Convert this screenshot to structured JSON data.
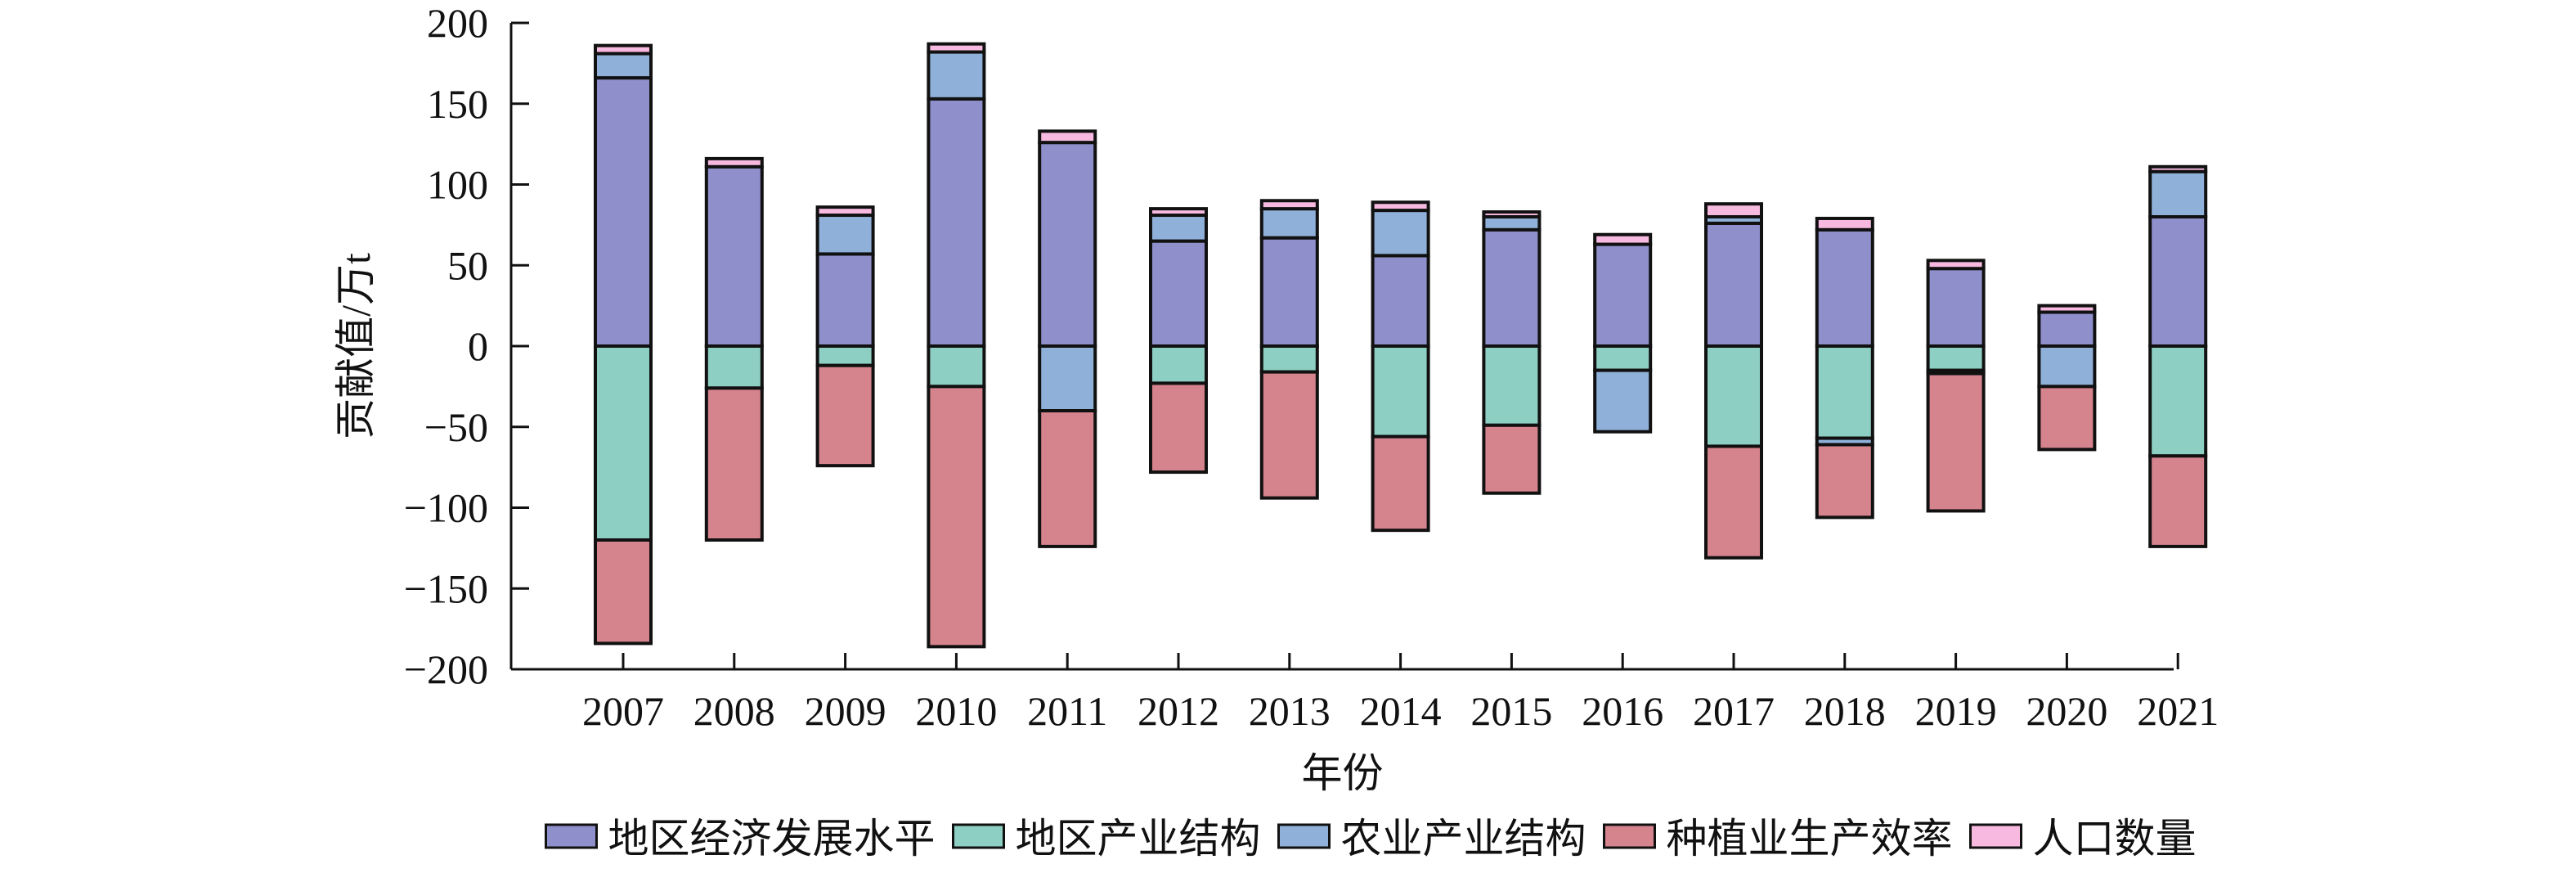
{
  "chart_data": {
    "type": "bar",
    "stacked": true,
    "title": "",
    "xlabel": "年份",
    "ylabel": "贡献值/万t",
    "ylim": [
      -200,
      200
    ],
    "yticks": [
      -200,
      -150,
      -100,
      -50,
      0,
      50,
      100,
      150,
      200
    ],
    "ytick_labels": [
      "−200",
      "−150",
      "−100",
      "−50",
      "0",
      "50",
      "100",
      "150",
      "200"
    ],
    "grid": false,
    "legend": "bottom",
    "categories": [
      "2007",
      "2008",
      "2009",
      "2010",
      "2011",
      "2012",
      "2013",
      "2014",
      "2015",
      "2016",
      "2017",
      "2018",
      "2019",
      "2020",
      "2021"
    ],
    "series": [
      {
        "name": "地区经济发展水平",
        "color": "#8f8fcc",
        "values": [
          166,
          111,
          57,
          153,
          126,
          65,
          67,
          56,
          72,
          63,
          76,
          72,
          48,
          21,
          80
        ]
      },
      {
        "name": "地区产业结构",
        "color": "#8ecfc3",
        "values": [
          -120,
          -26,
          -12,
          -25,
          0,
          -23,
          -16,
          -56,
          -49,
          -15,
          -62,
          -57,
          -15,
          0,
          -68
        ]
      },
      {
        "name": "农业产业结构",
        "color": "#8fb1d9",
        "values": [
          15,
          0,
          24,
          29,
          -40,
          16,
          18,
          28,
          8,
          -38,
          4,
          -4,
          -2,
          -25,
          28
        ]
      },
      {
        "name": "种植业生产效率",
        "color": "#d5838d",
        "values": [
          -64,
          -94,
          -62,
          -161,
          -84,
          -55,
          -78,
          -58,
          -42,
          0,
          -69,
          -45,
          -85,
          -39,
          -56
        ]
      },
      {
        "name": "人口数量",
        "color": "#f7b9df",
        "values": [
          5,
          5,
          5,
          5,
          7,
          4,
          5,
          5,
          3,
          6,
          8,
          7,
          5,
          4,
          3
        ]
      }
    ]
  }
}
